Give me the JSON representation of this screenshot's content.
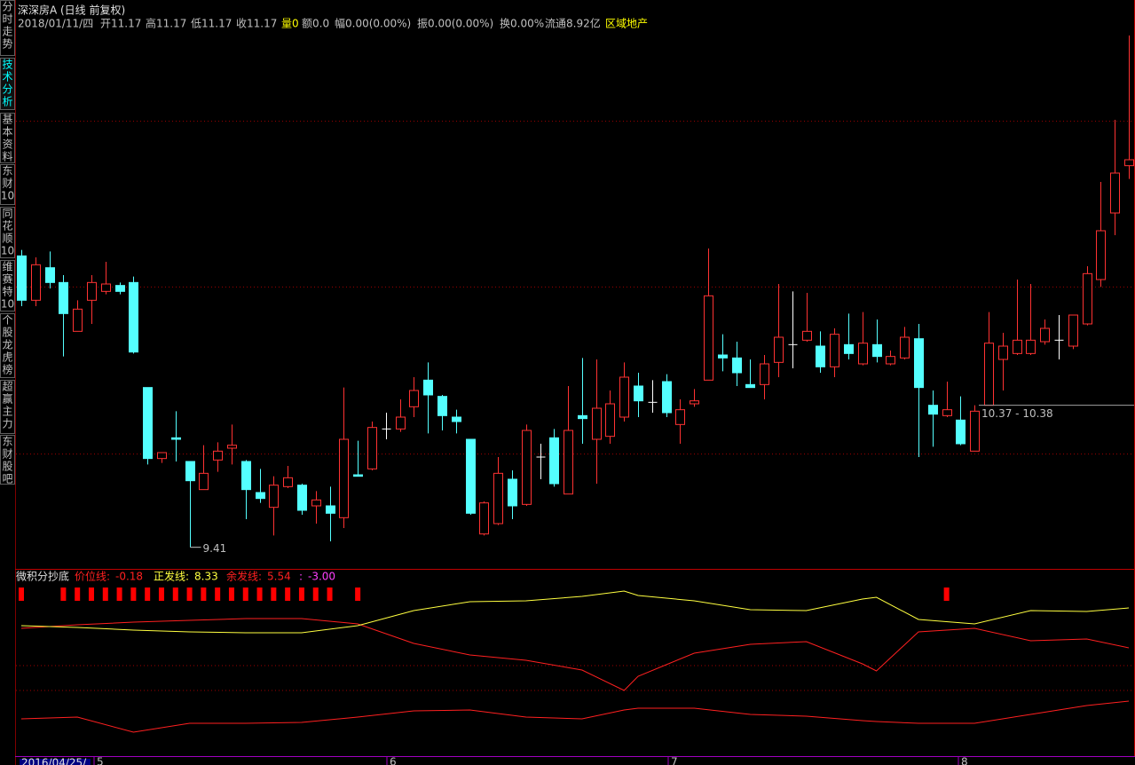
{
  "sidebar": [
    "分时走势",
    "技术分析",
    "基本资料",
    "东财10",
    "同花顺10",
    "维赛特10",
    "个股龙虎榜",
    "超赢主力",
    "东财股吧"
  ],
  "sidebar_active": 1,
  "sidebar_color": "#c0c0c0",
  "sidebar_active_color": "#00ffff",
  "header": {
    "name": "深深房A",
    "mode": "(日线 前复权)",
    "fields": [
      {
        "text": "2018/01/11/四",
        "color": "#c0c0c0"
      },
      {
        "text": "开11.17",
        "color": "#c0c0c0"
      },
      {
        "text": "高11.17",
        "color": "#c0c0c0"
      },
      {
        "text": "低11.17",
        "color": "#c0c0c0"
      },
      {
        "text": "收11.17",
        "color": "#c0c0c0"
      },
      {
        "text": "量0",
        "color": "#ffff00"
      },
      {
        "text": "额0.0",
        "color": "#c0c0c0"
      },
      {
        "text": "幅0.00(0.00%)",
        "color": "#c0c0c0"
      },
      {
        "text": "振0.00(0.00%)",
        "color": "#c0c0c0"
      },
      {
        "text": "换0.00%",
        "color": "#c0c0c0"
      },
      {
        "text": "流通8.92亿",
        "color": "#c0c0c0"
      },
      {
        "text": "区域地产",
        "color": "#ffff00"
      }
    ]
  },
  "chart_data": {
    "type": "candlestick",
    "ylim": [
      9.27,
      12.93
    ],
    "grid_lines": [
      12.29,
      11.17,
      10.04
    ],
    "up_color": "#ff3232",
    "down_color": "#54ffff",
    "flat_color": "#ffffff",
    "open": [
      11.38,
      11.08,
      11.3,
      11.2,
      10.87,
      11.08,
      11.14,
      11.18,
      11.2,
      10.49,
      10.01,
      10.15,
      9.99,
      9.8,
      10.0,
      10.08,
      9.99,
      9.78,
      9.68,
      9.82,
      9.83,
      9.69,
      9.69,
      9.61,
      9.9,
      9.94,
      10.21,
      10.21,
      10.36,
      10.54,
      10.43,
      10.29,
      10.14,
      9.5,
      9.57,
      9.87,
      9.7,
      10.02,
      10.15,
      9.77,
      10.3,
      10.14,
      10.16,
      10.29,
      10.5,
      10.39,
      10.53,
      10.24,
      10.38,
      10.54,
      10.71,
      10.69,
      10.51,
      10.51,
      10.66,
      10.78,
      10.81,
      10.77,
      10.63,
      10.78,
      10.65,
      10.78,
      10.65,
      10.69,
      10.82,
      10.37,
      10.3,
      10.27,
      10.06,
      10.37,
      10.68,
      10.72,
      10.72,
      10.8,
      10.81,
      10.77,
      10.92,
      11.22,
      11.67,
      11.99
    ],
    "high": [
      11.42,
      11.37,
      11.41,
      11.25,
      11.08,
      11.25,
      11.34,
      11.2,
      11.24,
      10.49,
      10.05,
      10.33,
      9.99,
      10.1,
      10.12,
      10.24,
      10.0,
      9.94,
      9.89,
      9.96,
      9.84,
      9.79,
      9.82,
      10.49,
      10.13,
      10.26,
      10.32,
      10.41,
      10.56,
      10.66,
      10.44,
      10.34,
      10.14,
      9.72,
      10.02,
      9.93,
      10.24,
      10.11,
      10.21,
      10.5,
      10.69,
      10.68,
      10.47,
      10.66,
      10.59,
      10.54,
      10.58,
      10.41,
      10.48,
      11.43,
      10.85,
      10.8,
      10.68,
      10.71,
      11.19,
      11.14,
      11.13,
      10.87,
      10.89,
      10.99,
      11.0,
      10.95,
      10.74,
      10.9,
      10.92,
      10.47,
      10.53,
      10.43,
      10.37,
      11.0,
      10.86,
      11.22,
      11.19,
      10.95,
      10.98,
      10.98,
      11.31,
      11.88,
      12.3,
      12.87
    ],
    "low": [
      11.04,
      11.04,
      11.16,
      10.7,
      10.87,
      10.92,
      11.12,
      11.12,
      10.72,
      9.97,
      9.98,
      9.99,
      9.41,
      9.8,
      9.92,
      9.97,
      9.6,
      9.71,
      9.49,
      9.81,
      9.63,
      9.57,
      9.45,
      9.54,
      9.89,
      9.93,
      10.14,
      10.19,
      10.29,
      10.18,
      10.2,
      10.18,
      9.63,
      9.49,
      9.56,
      9.6,
      9.69,
      9.87,
      9.82,
      9.77,
      10.11,
      9.84,
      10.11,
      10.26,
      10.29,
      10.32,
      10.29,
      10.11,
      10.36,
      10.54,
      10.6,
      10.5,
      10.49,
      10.41,
      10.56,
      10.62,
      10.8,
      10.59,
      10.56,
      10.68,
      10.64,
      10.66,
      10.64,
      10.68,
      10.02,
      10.09,
      10.29,
      10.1,
      10.06,
      10.37,
      10.47,
      10.71,
      10.71,
      10.78,
      10.68,
      10.75,
      10.91,
      11.17,
      11.52,
      11.9
    ],
    "close": [
      11.08,
      11.32,
      11.2,
      10.99,
      11.02,
      11.2,
      11.19,
      11.14,
      10.73,
      10.01,
      10.05,
      10.14,
      9.86,
      9.91,
      10.06,
      10.1,
      9.8,
      9.74,
      9.83,
      9.88,
      9.66,
      9.73,
      9.64,
      10.14,
      9.89,
      10.22,
      10.21,
      10.29,
      10.47,
      10.44,
      10.3,
      10.26,
      9.64,
      9.71,
      9.91,
      9.69,
      10.2,
      10.02,
      9.84,
      10.2,
      10.28,
      10.35,
      10.38,
      10.56,
      10.4,
      10.39,
      10.32,
      10.34,
      10.4,
      11.11,
      10.69,
      10.59,
      10.49,
      10.65,
      10.83,
      10.78,
      10.87,
      10.63,
      10.85,
      10.72,
      10.79,
      10.7,
      10.7,
      10.83,
      10.49,
      10.31,
      10.34,
      10.11,
      10.33,
      10.79,
      10.77,
      10.81,
      10.81,
      10.89,
      10.81,
      10.98,
      11.26,
      11.55,
      11.94,
      12.03
    ],
    "min_label": 9.41,
    "range_label": "10.37 - 10.38",
    "range_level": 10.37
  },
  "indicator": {
    "type": "line",
    "title": "微积分抄底",
    "ylim": [
      0,
      100
    ],
    "grid_lines": [
      50,
      36
    ],
    "x": [
      0,
      4,
      8,
      12,
      16,
      20,
      24,
      28,
      32,
      36,
      40,
      43,
      44,
      48,
      52,
      56,
      60,
      61,
      64,
      68,
      72,
      76,
      79
    ],
    "series": [
      {
        "name": "价位线:",
        "value": -0.18,
        "color": "#ff2020",
        "values": [
          71,
          73,
          74.5,
          75.5,
          76.5,
          76.5,
          73.5,
          62.5,
          56,
          53,
          47.5,
          36,
          44,
          57,
          62,
          63.5,
          51,
          47,
          69,
          71,
          64,
          65,
          60
        ]
      },
      {
        "name": "正发线:",
        "value": 8.33,
        "color": "#ffff40",
        "values": [
          72.5,
          71.5,
          70,
          69,
          68.5,
          68.5,
          72.5,
          81,
          86,
          86.5,
          89,
          92,
          89.5,
          86.5,
          81.5,
          81,
          87.5,
          88.5,
          76,
          73.5,
          81,
          80.5,
          82.5
        ]
      },
      {
        "name": "余发线:",
        "value": 5.54,
        "color": "#ff2020",
        "values": [
          20,
          21,
          12.5,
          17.5,
          17.5,
          18,
          21,
          24.5,
          25,
          21,
          20,
          25,
          26,
          26,
          22.5,
          21.5,
          19,
          18.5,
          17.5,
          17.5,
          22.5,
          27.5,
          30
        ]
      },
      {
        "name": ":",
        "value": -3,
        "value_label": "-3.00",
        "color": "#ff40ff"
      }
    ],
    "signals": [
      0,
      3,
      4,
      5,
      6,
      7,
      8,
      9,
      10,
      11,
      12,
      13,
      14,
      15,
      16,
      17,
      18,
      19,
      20,
      21,
      22,
      24,
      66
    ],
    "signal_color": "#ff0000"
  },
  "date_axis": {
    "start": "2016/04/25/",
    "months": [
      "5",
      "6",
      "7",
      "8"
    ]
  }
}
